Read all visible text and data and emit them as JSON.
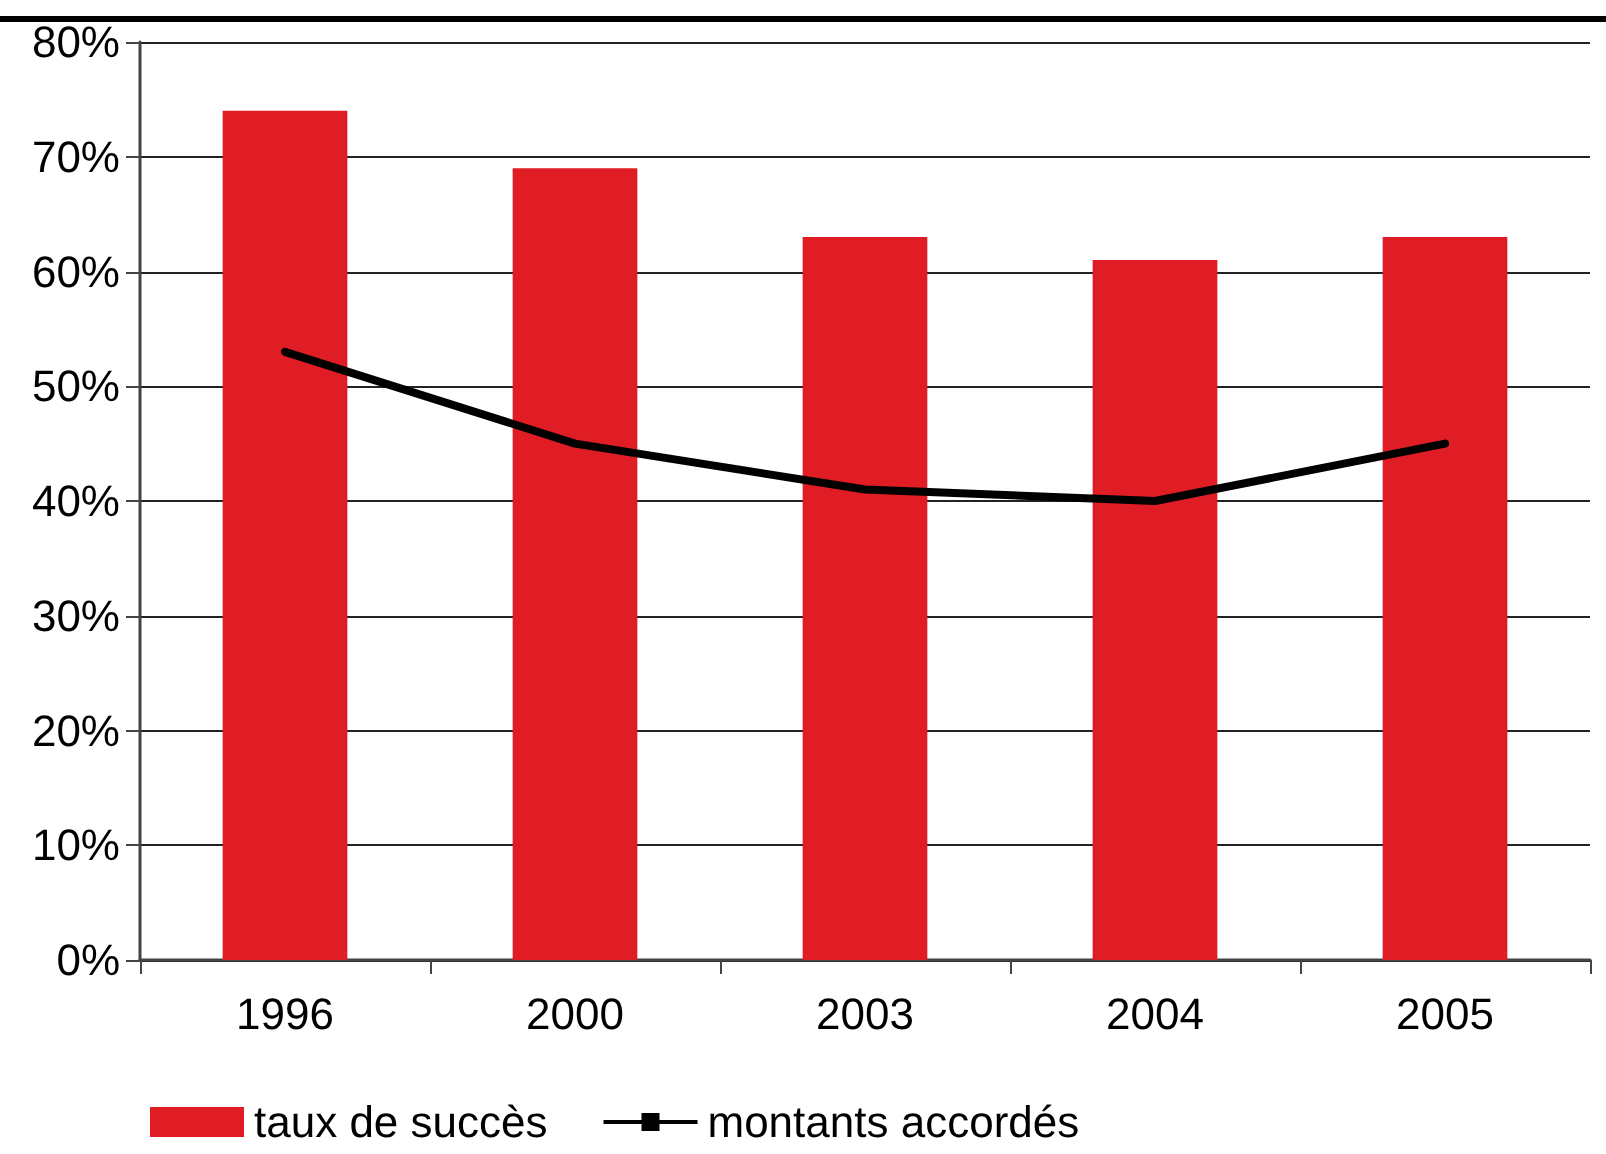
{
  "chart_data": {
    "type": "bar",
    "categories": [
      "1996",
      "2000",
      "2003",
      "2004",
      "2005"
    ],
    "series": [
      {
        "name": "taux de succès",
        "color": "#e01c24",
        "values": [
          74,
          69,
          63,
          61,
          63
        ]
      },
      {
        "name": "montants accordés",
        "type": "line",
        "color": "#000000",
        "values": [
          53,
          45,
          41,
          40,
          45
        ]
      }
    ],
    "ylim": [
      0,
      80
    ],
    "yticks": [
      {
        "value": 0,
        "label": "0%"
      },
      {
        "value": 10,
        "label": "10%"
      },
      {
        "value": 20,
        "label": "20%"
      },
      {
        "value": 30,
        "label": "30%"
      },
      {
        "value": 40,
        "label": "40%"
      },
      {
        "value": 50,
        "label": "50%"
      },
      {
        "value": 60,
        "label": "60%"
      },
      {
        "value": 70,
        "label": "70%"
      },
      {
        "value": 80,
        "label": "80%"
      }
    ],
    "grid": "y",
    "legend": "bottom"
  }
}
